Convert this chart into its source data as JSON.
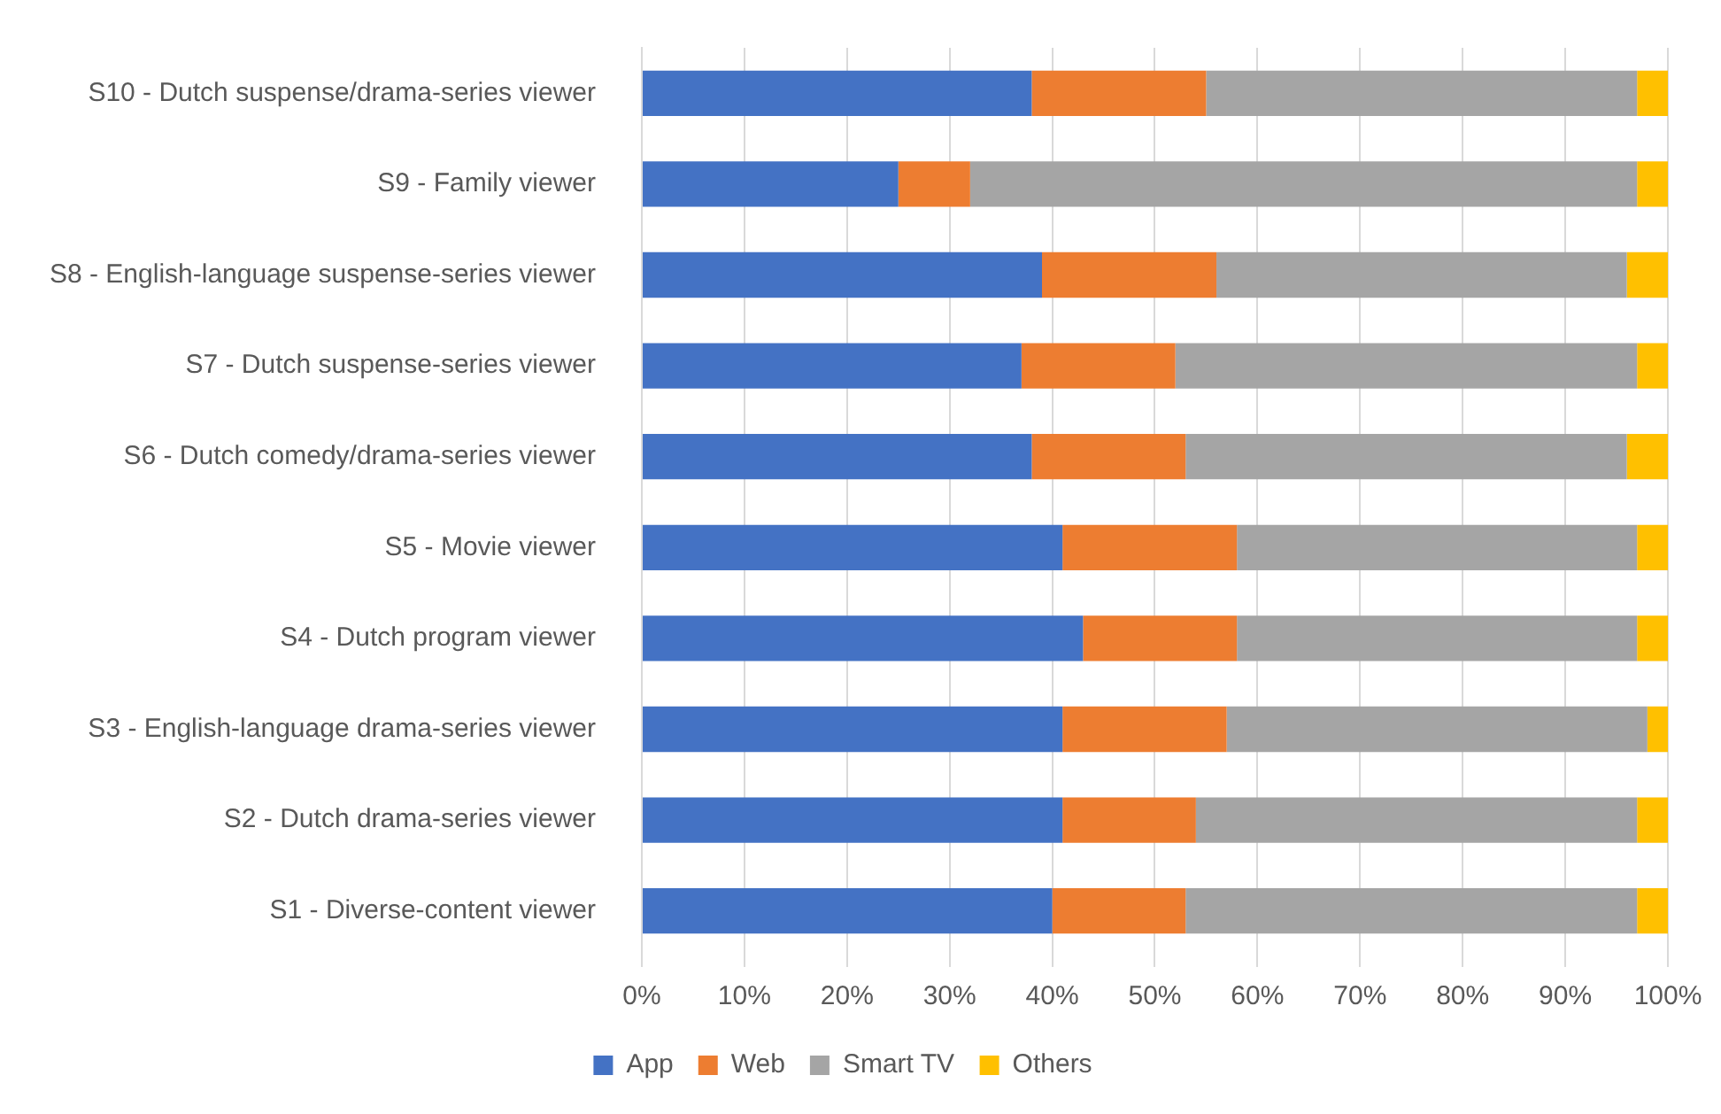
{
  "chart_data": {
    "type": "bar",
    "orientation": "horizontal",
    "stacked": true,
    "categories": [
      "S10 - Dutch suspense/drama-series viewer",
      "S9 - Family viewer",
      "S8 - English-language suspense-series viewer",
      "S7 - Dutch suspense-series viewer",
      "S6 - Dutch comedy/drama-series viewer",
      "S5 - Movie viewer",
      "S4 - Dutch program viewer",
      "S3 - English-language drama-series viewer",
      "S2 - Dutch drama-series viewer",
      "S1 - Diverse-content viewer"
    ],
    "series": [
      {
        "name": "App",
        "color": "#4472c4",
        "values": [
          38,
          25,
          39,
          37,
          38,
          41,
          43,
          41,
          41,
          40
        ]
      },
      {
        "name": "Web",
        "color": "#ed7d31",
        "values": [
          17,
          7,
          17,
          15,
          15,
          17,
          15,
          16,
          13,
          13
        ]
      },
      {
        "name": "Smart TV",
        "color": "#a5a5a5",
        "values": [
          42,
          65,
          40,
          45,
          43,
          39,
          39,
          41,
          43,
          44
        ]
      },
      {
        "name": "Others",
        "color": "#ffc000",
        "values": [
          3,
          3,
          4,
          3,
          4,
          3,
          3,
          2,
          3,
          3
        ]
      }
    ],
    "xlim": [
      0,
      100
    ],
    "xticks": [
      {
        "value": 0,
        "label": "0%"
      },
      {
        "value": 10,
        "label": "10%"
      },
      {
        "value": 20,
        "label": "20%"
      },
      {
        "value": 30,
        "label": "30%"
      },
      {
        "value": 40,
        "label": "40%"
      },
      {
        "value": 50,
        "label": "50%"
      },
      {
        "value": 60,
        "label": "60%"
      },
      {
        "value": 70,
        "label": "70%"
      },
      {
        "value": 80,
        "label": "80%"
      },
      {
        "value": 90,
        "label": "90%"
      },
      {
        "value": 100,
        "label": "100%"
      }
    ],
    "grid": "x",
    "legend": "bottom"
  }
}
